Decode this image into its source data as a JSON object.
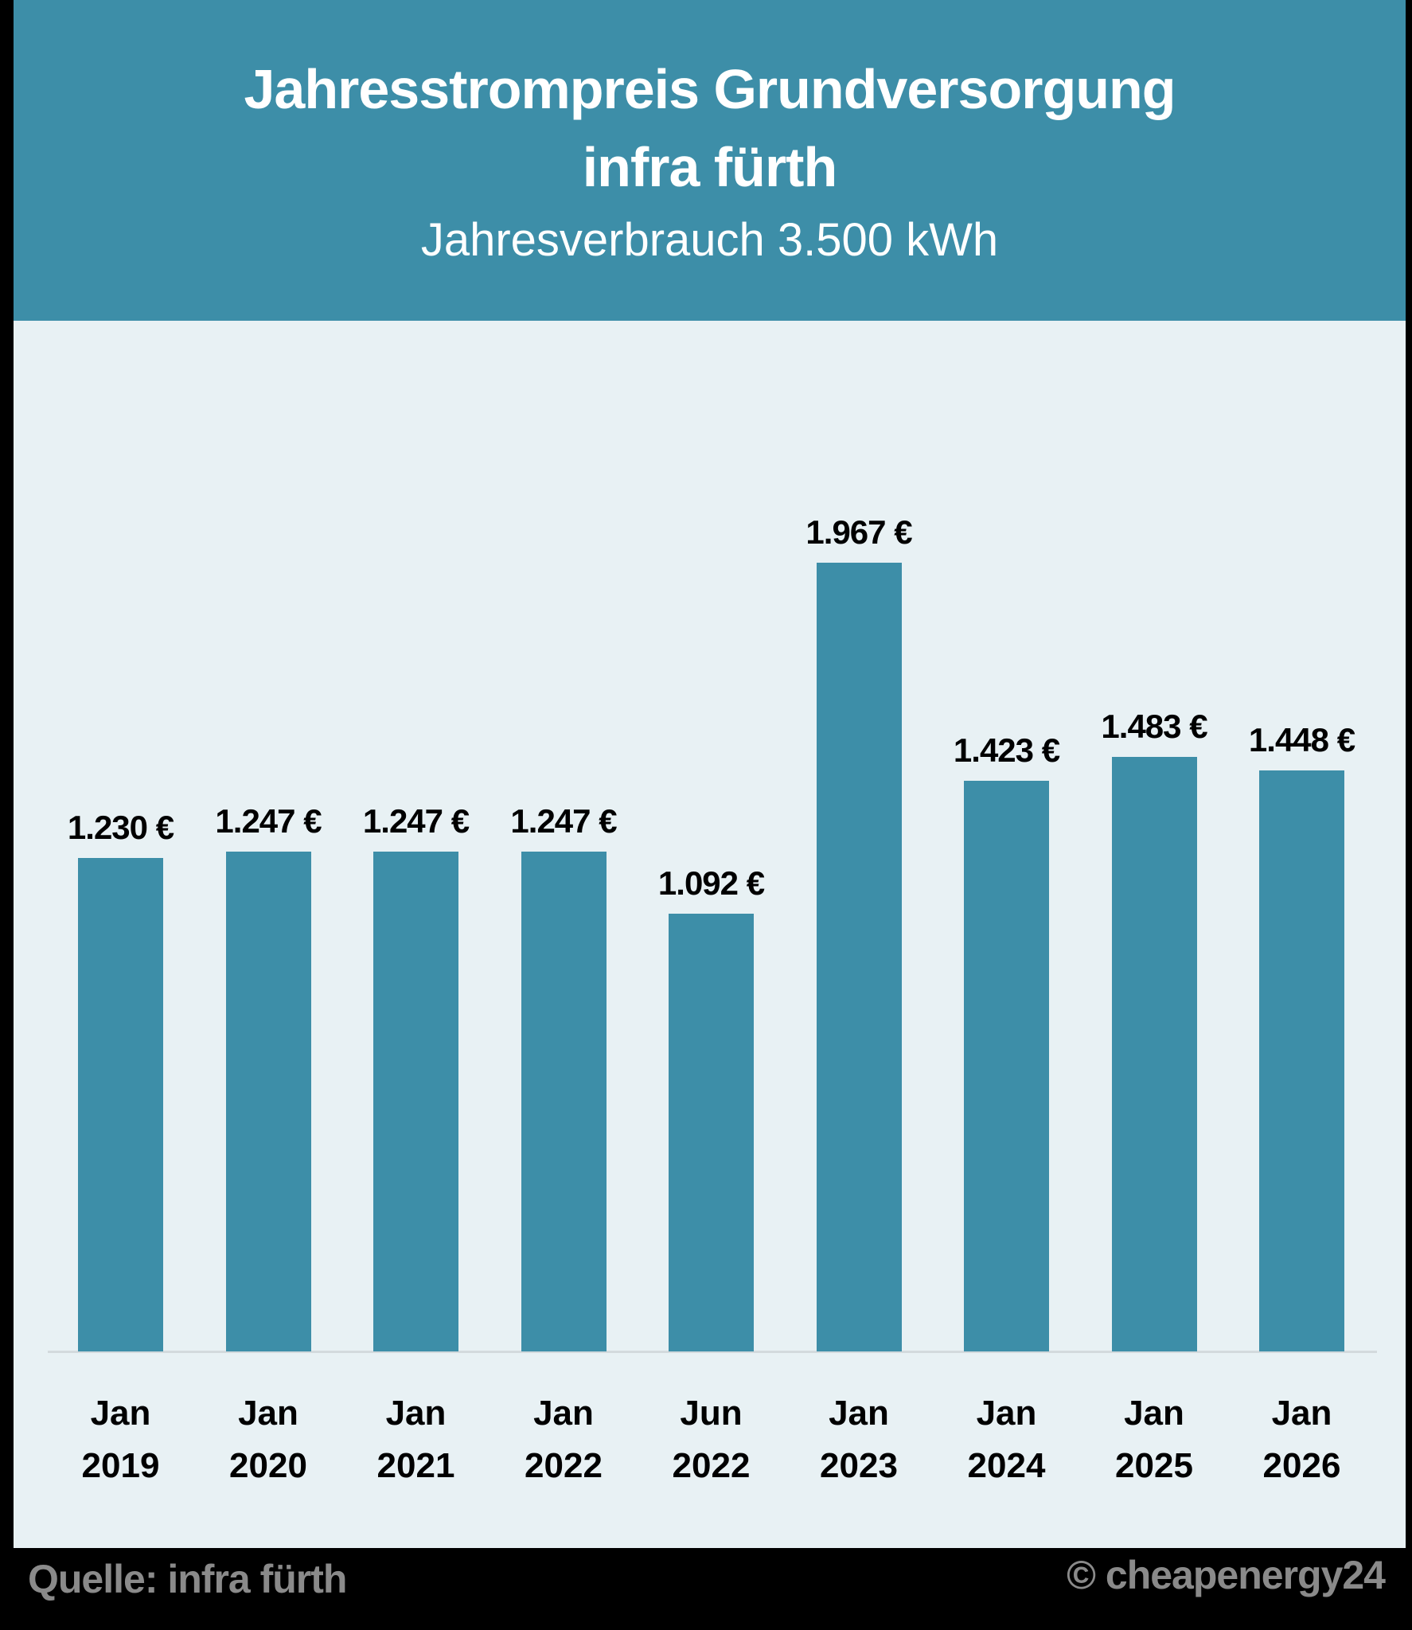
{
  "header": {
    "title_line1": "Jahresstrompreis Grundversorgung",
    "title_line2": "infra fürth",
    "subtitle": "Jahresverbrauch 3.500 kWh"
  },
  "footer": {
    "source": "Quelle: infra fürth",
    "copyright": "© cheapenergy24"
  },
  "colors": {
    "bar": "#3d8ea8",
    "header_bg": "#3d8ea8",
    "plot_bg": "#e8f1f4"
  },
  "bars": [
    {
      "month": "Jan",
      "year": "2019",
      "label": "1.230 €"
    },
    {
      "month": "Jan",
      "year": "2020",
      "label": "1.247 €"
    },
    {
      "month": "Jan",
      "year": "2021",
      "label": "1.247 €"
    },
    {
      "month": "Jan",
      "year": "2022",
      "label": "1.247 €"
    },
    {
      "month": "Jun",
      "year": "2022",
      "label": "1.092 €"
    },
    {
      "month": "Jan",
      "year": "2023",
      "label": "1.967 €"
    },
    {
      "month": "Jan",
      "year": "2024",
      "label": "1.423 €"
    },
    {
      "month": "Jan",
      "year": "2025",
      "label": "1.483 €"
    },
    {
      "month": "Jan",
      "year": "2026",
      "label": "1.448 €"
    }
  ],
  "chart_data": {
    "type": "bar",
    "title": "Jahresstrompreis Grundversorgung infra fürth",
    "subtitle": "Jahresverbrauch 3.500 kWh",
    "categories": [
      "Jan 2019",
      "Jan 2020",
      "Jan 2021",
      "Jan 2022",
      "Jun 2022",
      "Jan 2023",
      "Jan 2024",
      "Jan 2025",
      "Jan 2026"
    ],
    "values": [
      1230,
      1247,
      1247,
      1247,
      1092,
      1967,
      1423,
      1483,
      1448
    ],
    "unit": "€",
    "xlabel": "",
    "ylabel": "",
    "ylim": [
      0,
      2000
    ],
    "grid": false,
    "legend": null,
    "data_labels": true,
    "source": "Quelle: infra fürth"
  }
}
